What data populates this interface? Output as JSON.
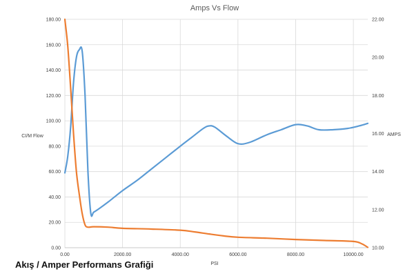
{
  "caption": "Akış / Amper Performans Grafiği",
  "chart_data": {
    "type": "line",
    "title": "Amps Vs Flow",
    "xlabel": "PSI",
    "ylabel_left": "CI/M Flow",
    "ylabel_right": "AMPS",
    "xlim": [
      0,
      10500
    ],
    "ylim_left": [
      0,
      180
    ],
    "ylim_right": [
      10,
      22
    ],
    "x_ticks": [
      "0.00",
      "2000.00",
      "4000.00",
      "6000.00",
      "8000.00",
      "10000.00"
    ],
    "y_left_ticks": [
      "0.00",
      "20.00",
      "40.00",
      "60.00",
      "80.00",
      "100.00",
      "120.00",
      "140.00",
      "160.00",
      "180.00"
    ],
    "y_right_ticks": [
      "10.00",
      "12.00",
      "14.00",
      "16.00",
      "18.00",
      "20.00",
      "22.00"
    ],
    "grid": true,
    "series": [
      {
        "axis": "left",
        "color": "#5b9bd5",
        "x": [
          0,
          100,
          200,
          300,
          400,
          500,
          600,
          700,
          800,
          900,
          1000,
          1200,
          1500,
          2000,
          2500,
          3000,
          3500,
          4000,
          4400,
          4800,
          5000,
          5200,
          5600,
          6000,
          6400,
          7000,
          7500,
          8000,
          8400,
          8800,
          9300,
          9800,
          10200,
          10500
        ],
        "y": [
          59,
          72,
          95,
          130,
          150,
          156,
          155,
          120,
          60,
          27,
          28,
          31,
          36,
          45,
          53,
          62,
          71,
          80,
          87,
          94,
          96,
          95,
          88,
          82,
          83,
          89,
          93,
          97,
          96,
          93,
          93,
          94,
          96,
          98
        ]
      },
      {
        "axis": "right",
        "color": "#ed7d31",
        "x": [
          0,
          100,
          200,
          300,
          400,
          500,
          600,
          700,
          800,
          1000,
          1500,
          2000,
          3000,
          4000,
          4500,
          5000,
          5500,
          6000,
          7000,
          8000,
          9000,
          10000,
          10300,
          10500
        ],
        "y": [
          22.0,
          20.6,
          18.4,
          16.0,
          14.0,
          12.8,
          11.8,
          11.2,
          11.08,
          11.1,
          11.08,
          11.02,
          10.98,
          10.92,
          10.83,
          10.72,
          10.62,
          10.55,
          10.5,
          10.43,
          10.38,
          10.33,
          10.2,
          10.02
        ]
      }
    ]
  }
}
